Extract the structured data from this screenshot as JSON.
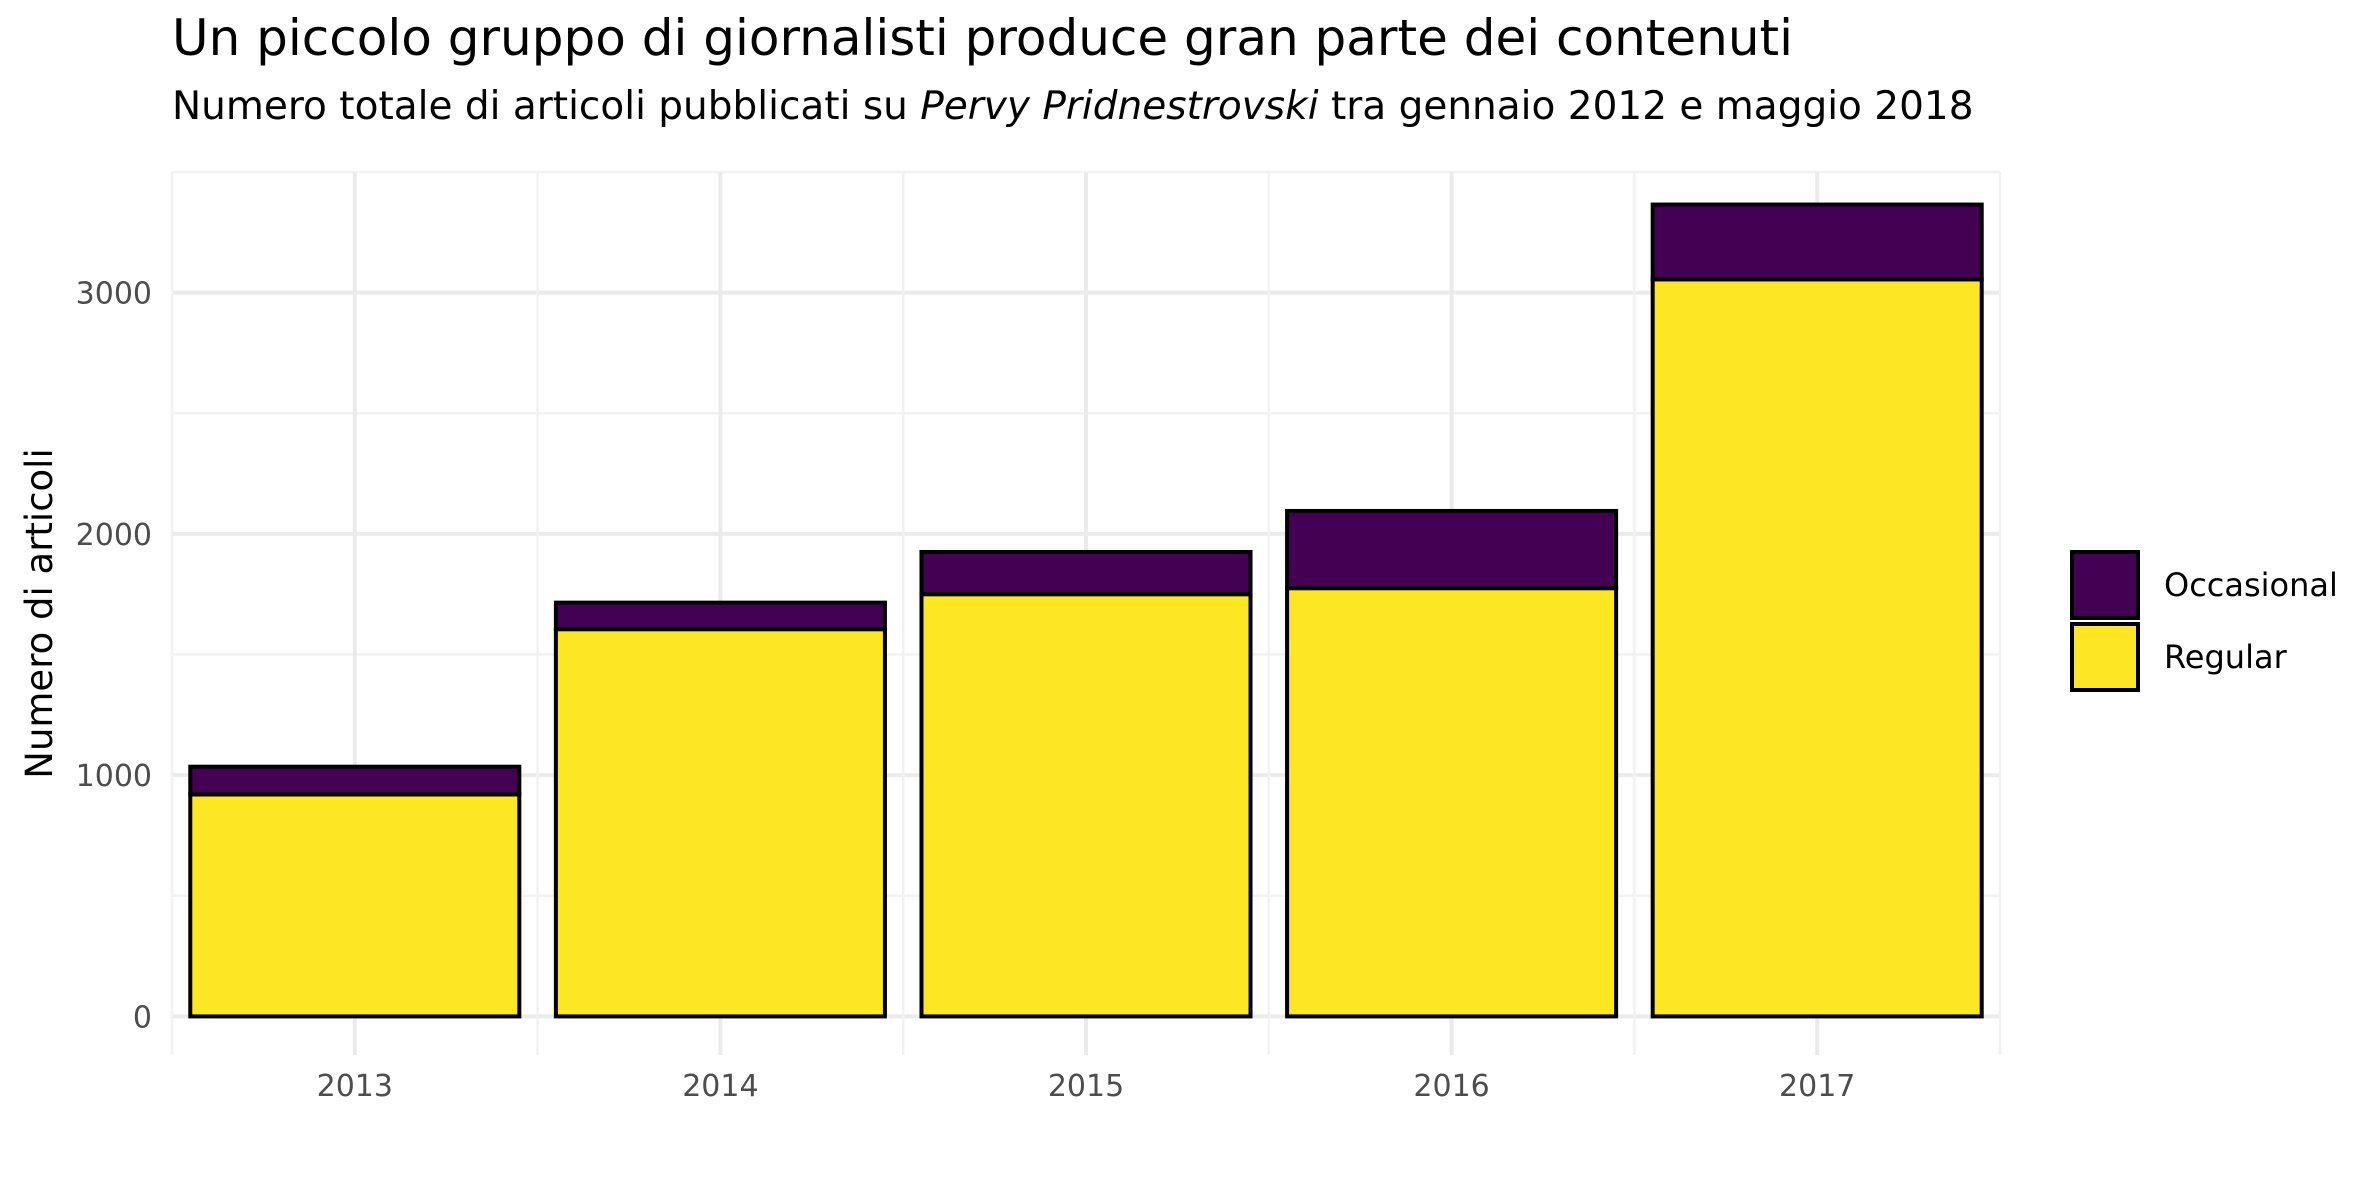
{
  "chart_data": {
    "type": "bar",
    "stacked": true,
    "title": "Un piccolo gruppo di giornalisti produce gran parte dei contenuti",
    "subtitle": {
      "before": "Numero totale di articoli pubblicati su ",
      "italic": "Pervy Pridnestrovski",
      "after": " tra gennaio 2012 e maggio 2018"
    },
    "xlabel": "",
    "ylabel": "Numero di articoli",
    "categories": [
      "2013",
      "2014",
      "2015",
      "2016",
      "2017"
    ],
    "series": [
      {
        "name": "Regular",
        "color": "#FDE725",
        "values": [
          920,
          1605,
          1750,
          1775,
          3055
        ]
      },
      {
        "name": "Occasional",
        "color": "#440154",
        "values": [
          115,
          110,
          175,
          320,
          310
        ]
      }
    ],
    "yticks": [
      0,
      1000,
      2000,
      3000
    ],
    "ylim": [
      -160,
      3500
    ],
    "grid": true,
    "legend": {
      "position": "right",
      "order": [
        "Occasional",
        "Regular"
      ]
    }
  }
}
